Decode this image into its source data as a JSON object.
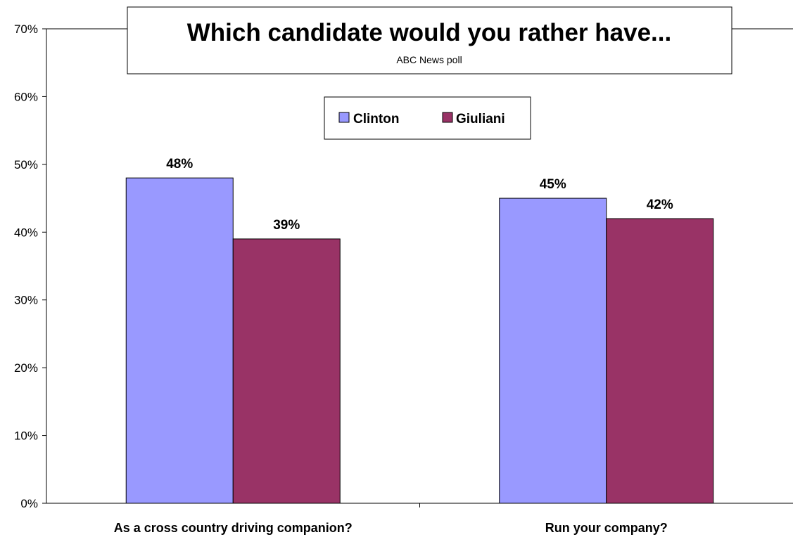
{
  "chart_data": {
    "type": "bar",
    "title": "Which candidate would you rather have...",
    "subtitle": "ABC News poll",
    "categories": [
      "As a cross country driving companion?",
      "Run your company?"
    ],
    "series": [
      {
        "name": "Clinton",
        "values": [
          48,
          45
        ],
        "color": "#9999ff"
      },
      {
        "name": "Giuliani",
        "values": [
          39,
          42
        ],
        "color": "#993366"
      }
    ],
    "data_labels": [
      [
        "48%",
        "45%"
      ],
      [
        "39%",
        "42%"
      ]
    ],
    "ylim": [
      0,
      70
    ],
    "y_ticks": [
      "0%",
      "10%",
      "20%",
      "30%",
      "40%",
      "50%",
      "60%",
      "70%"
    ],
    "grid": false,
    "legend_position": "top-center"
  }
}
